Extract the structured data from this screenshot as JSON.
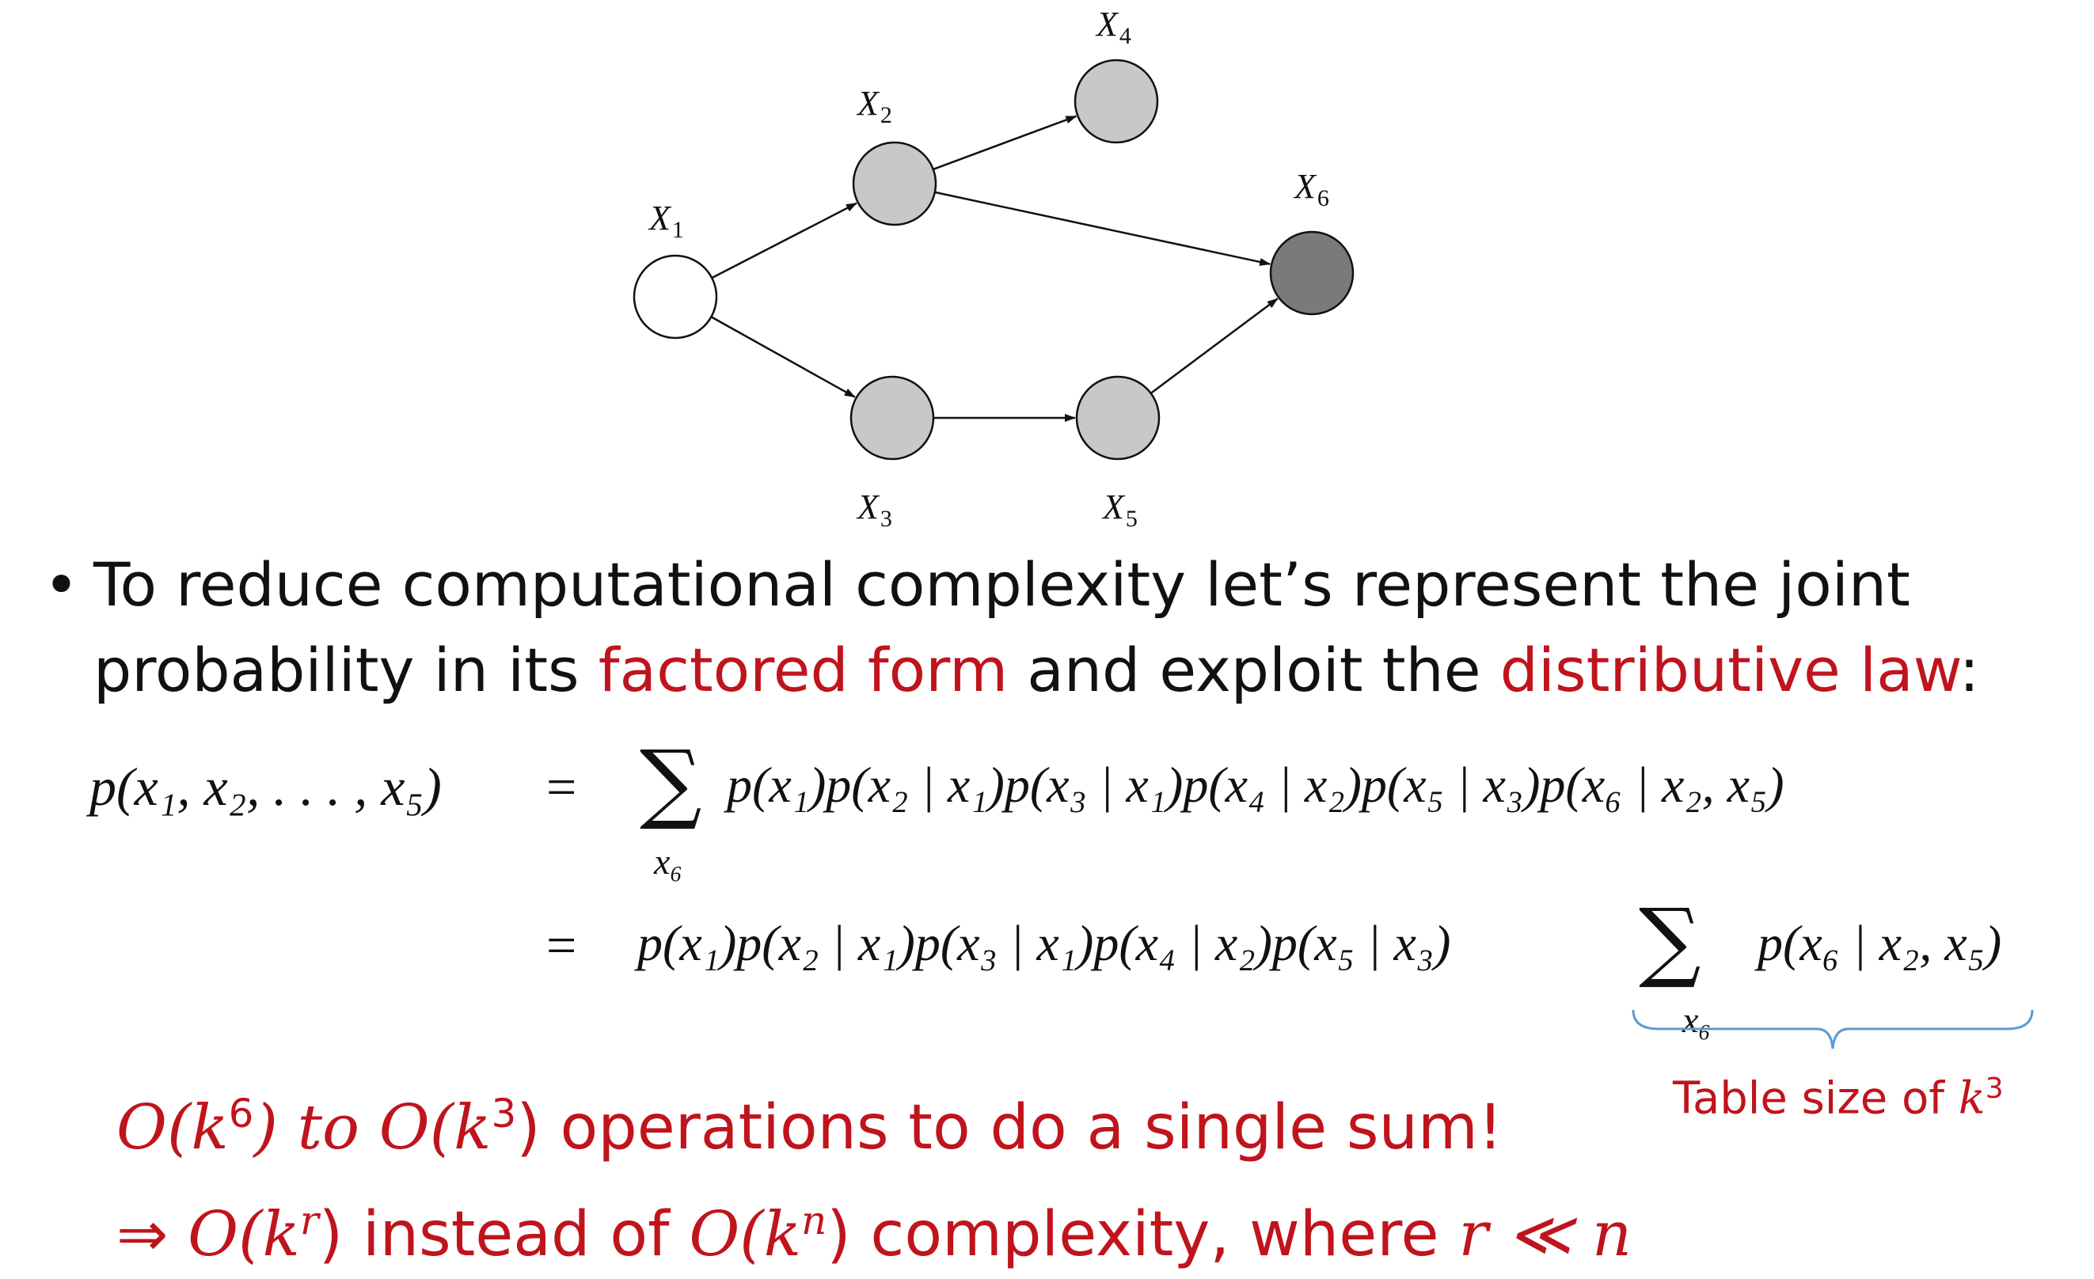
{
  "graph": {
    "nodes": [
      {
        "id": "x1",
        "label_main": "X",
        "label_sub": "1",
        "fill": "#ffffff"
      },
      {
        "id": "x2",
        "label_main": "X",
        "label_sub": "2",
        "fill": "#c8c8c8"
      },
      {
        "id": "x3",
        "label_main": "X",
        "label_sub": "3",
        "fill": "#c8c8c8"
      },
      {
        "id": "x4",
        "label_main": "X",
        "label_sub": "4",
        "fill": "#c8c8c8"
      },
      {
        "id": "x5",
        "label_main": "X",
        "label_sub": "5",
        "fill": "#c8c8c8"
      },
      {
        "id": "x6",
        "label_main": "X",
        "label_sub": "6",
        "fill": "#7a7a7a"
      }
    ],
    "edges": [
      {
        "from": "x1",
        "to": "x2"
      },
      {
        "from": "x1",
        "to": "x3"
      },
      {
        "from": "x2",
        "to": "x4"
      },
      {
        "from": "x2",
        "to": "x6"
      },
      {
        "from": "x3",
        "to": "x5"
      },
      {
        "from": "x5",
        "to": "x6"
      }
    ]
  },
  "bullet": {
    "marker": "•",
    "text_1": "To reduce computational complexity let’s represent the joint probability in its ",
    "highlight_1": "factored form",
    "text_2": " and exploit the ",
    "highlight_2": "distributive law",
    "text_3": ":"
  },
  "equation": {
    "lhs": "p(x₁, x₂, . . . , x₅)",
    "equals": "=",
    "sum_symbol": "∑",
    "sum_index": "x₆",
    "line1_rhs": "p(x₁)p(x₂ | x₁)p(x₃ | x₁)p(x₄ | x₂)p(x₅ | x₃)p(x₆ | x₂, x₅)",
    "line2_factors": "p(x₁)p(x₂ | x₁)p(x₃ | x₁)p(x₄ | x₂)p(x₅ | x₃)",
    "line2_term": "p(x₆ | x₂, x₅)"
  },
  "annotation": {
    "table_note": "Table size of ",
    "table_note_math": "k",
    "table_note_exp": "3",
    "brace_color": "#5b9bd5"
  },
  "conclusions": {
    "line1_a": "O",
    "line1_b": "(k",
    "line1_exp1": "6",
    "line1_c": ") to ",
    "line1_d": "O",
    "line1_e": "(k",
    "line1_exp2": "3",
    "line1_f": ") operations to do a single sum!",
    "line2_arrow": "⇒ ",
    "line2_a": "O",
    "line2_b": "(k",
    "line2_exp1": "r",
    "line2_c": ") instead of ",
    "line2_d": "O",
    "line2_e": "(k",
    "line2_exp2": "n",
    "line2_f": ") complexity, where ",
    "line2_g": "r ≪ n"
  },
  "colors": {
    "accent_red": "#c0141c",
    "text": "#111111"
  }
}
